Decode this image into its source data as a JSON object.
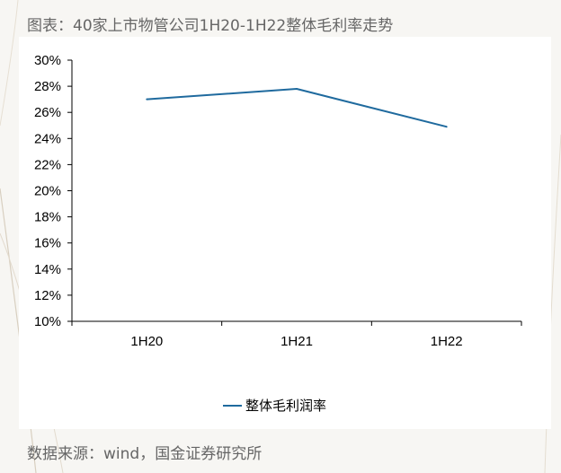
{
  "title": "图表：40家上市物管公司1H20-1H22整体毛利率走势",
  "source": "数据来源：wind，国金证券研究所",
  "colors": {
    "series": "#1f6a9e",
    "axis": "#000000",
    "background": "#f7f6f3",
    "panel": "#ffffff"
  },
  "chart_data": {
    "type": "line",
    "categories": [
      "1H20",
      "1H21",
      "1H22"
    ],
    "series": [
      {
        "name": "整体毛利润率",
        "values": [
          27.0,
          27.8,
          24.9
        ]
      }
    ],
    "y_ticks": [
      "30%",
      "28%",
      "26%",
      "24%",
      "22%",
      "20%",
      "18%",
      "16%",
      "14%",
      "12%",
      "10%"
    ],
    "ylim": [
      10,
      30
    ],
    "y_unit": "%",
    "grid": false,
    "legend": "bottom"
  }
}
